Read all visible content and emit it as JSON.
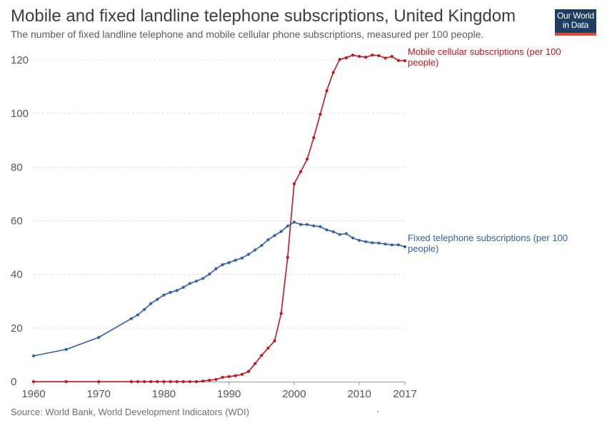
{
  "header": {
    "title": "Mobile and fixed landline telephone subscriptions, United Kingdom",
    "subtitle": "The number of fixed landline telephone and mobile cellular phone subscriptions, measured per 100 people."
  },
  "logo": {
    "line1": "Our World",
    "line2": "in Data"
  },
  "footer": {
    "source": "Source: World Bank, World Development Indicators (WDI)"
  },
  "colors": {
    "mobile": "#c4151c",
    "fixed": "#3360a9",
    "grid": "#dddddd",
    "axis_text": "#555555"
  },
  "chart_data": {
    "type": "line",
    "title": "Mobile and fixed landline telephone subscriptions, United Kingdom",
    "xlim": [
      1960,
      2017
    ],
    "ylim": [
      0,
      120
    ],
    "x_ticks": [
      1960,
      1970,
      1980,
      1990,
      2000,
      2010,
      2017
    ],
    "y_ticks": [
      0,
      20,
      40,
      60,
      80,
      100,
      120
    ],
    "grid": "horizontal dashed",
    "series": [
      {
        "name": "Mobile cellular subscriptions (per 100 people)",
        "label_lines": [
          "Mobile cellular subscriptions (per 100",
          "people)"
        ],
        "color": "#c4151c",
        "x": [
          1960,
          1965,
          1970,
          1975,
          1976,
          1977,
          1978,
          1979,
          1980,
          1981,
          1982,
          1983,
          1984,
          1985,
          1986,
          1987,
          1988,
          1989,
          1990,
          1991,
          1992,
          1993,
          1994,
          1995,
          1996,
          1997,
          1998,
          1999,
          2000,
          2001,
          2002,
          2003,
          2004,
          2005,
          2006,
          2007,
          2008,
          2009,
          2010,
          2011,
          2012,
          2013,
          2014,
          2015,
          2016,
          2017
        ],
        "y": [
          0,
          0,
          0,
          0,
          0,
          0,
          0,
          0,
          0,
          0,
          0,
          0,
          0,
          0,
          0.2,
          0.5,
          0.8,
          1.6,
          1.9,
          2.2,
          2.7,
          3.8,
          6.7,
          9.8,
          12.5,
          15.2,
          25.4,
          46.3,
          73.8,
          78.3,
          83.0,
          91.0,
          99.7,
          108.5,
          115.3,
          120.2,
          120.8,
          121.8,
          121.3,
          121.0,
          121.8,
          121.6,
          120.7,
          121.3,
          119.8,
          119.7
        ]
      },
      {
        "name": "Fixed telephone subscriptions (per 100 people)",
        "label_lines": [
          "Fixed telephone subscriptions (per 100",
          "people)"
        ],
        "color": "#3360a9",
        "x": [
          1960,
          1965,
          1970,
          1975,
          1976,
          1977,
          1978,
          1979,
          1980,
          1981,
          1982,
          1983,
          1984,
          1985,
          1986,
          1987,
          1988,
          1989,
          1990,
          1991,
          1992,
          1993,
          1994,
          1995,
          1996,
          1997,
          1998,
          1999,
          2000,
          2001,
          2002,
          2003,
          2004,
          2005,
          2006,
          2007,
          2008,
          2009,
          2010,
          2011,
          2012,
          2013,
          2014,
          2015,
          2016,
          2017
        ],
        "y": [
          9.6,
          12.0,
          16.5,
          23.5,
          24.9,
          26.9,
          29.1,
          30.7,
          32.3,
          33.3,
          34.0,
          35.2,
          36.6,
          37.5,
          38.5,
          40.1,
          42.1,
          43.6,
          44.4,
          45.3,
          46.1,
          47.5,
          49.1,
          50.8,
          52.9,
          54.5,
          56.0,
          58.0,
          59.5,
          58.6,
          58.6,
          58.1,
          57.8,
          56.6,
          55.9,
          54.9,
          55.2,
          53.6,
          52.7,
          52.2,
          51.8,
          51.7,
          51.3,
          51.0,
          51.0,
          50.3
        ]
      }
    ]
  }
}
